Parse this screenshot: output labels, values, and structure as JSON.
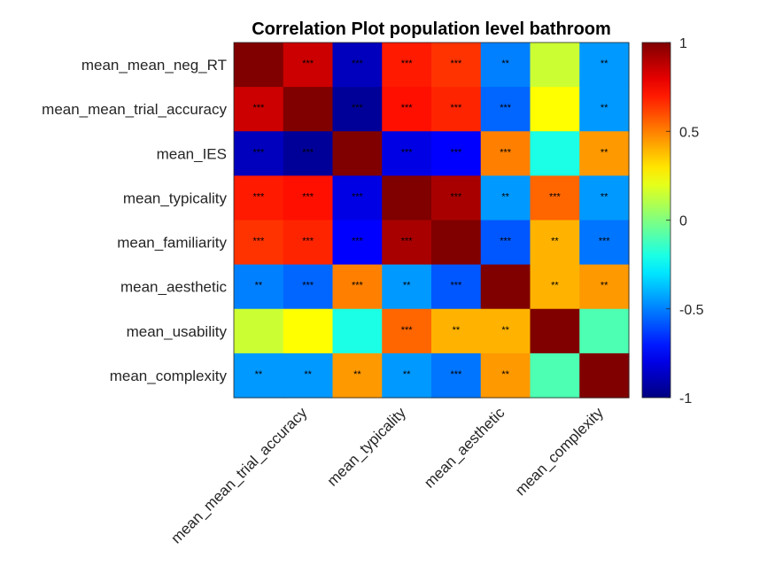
{
  "chart_data": {
    "type": "heatmap",
    "title": "Correlation Plot population level bathroom",
    "row_labels": [
      "mean_mean_neg_RT",
      "mean_mean_trial_accuracy",
      "mean_IES",
      "mean_typicality",
      "mean_familiarity",
      "mean_aesthetic",
      "mean_usability",
      "mean_complexity"
    ],
    "x_tick_labels": [
      "mean_mean_trial_accuracy",
      "mean_typicality",
      "mean_aesthetic",
      "mean_complexity"
    ],
    "x_tick_columns": [
      1,
      3,
      5,
      7
    ],
    "colormap": "jet",
    "clim": [
      -1,
      1
    ],
    "colorbar_ticks": [
      1,
      0.5,
      0,
      -0.5,
      -1
    ],
    "colorbar_tick_labels": [
      "1",
      "0.5",
      "0",
      "-0.5",
      "-1"
    ],
    "values": [
      [
        1.0,
        0.85,
        -0.88,
        0.7,
        0.65,
        -0.5,
        0.15,
        -0.45
      ],
      [
        0.85,
        1.0,
        -0.95,
        0.72,
        0.68,
        -0.55,
        0.25,
        -0.45
      ],
      [
        -0.88,
        -0.95,
        1.0,
        -0.8,
        -0.75,
        0.5,
        -0.2,
        0.45
      ],
      [
        0.7,
        0.72,
        -0.8,
        1.0,
        0.92,
        -0.45,
        0.55,
        -0.45
      ],
      [
        0.65,
        0.68,
        -0.75,
        0.92,
        1.0,
        -0.58,
        0.4,
        -0.52
      ],
      [
        -0.5,
        -0.55,
        0.5,
        -0.45,
        -0.58,
        1.0,
        0.4,
        0.45
      ],
      [
        0.15,
        0.25,
        -0.2,
        0.55,
        0.4,
        0.4,
        1.0,
        -0.1
      ],
      [
        -0.45,
        -0.45,
        0.45,
        -0.45,
        -0.52,
        0.45,
        -0.1,
        1.0
      ]
    ],
    "annotations": [
      [
        "",
        "***",
        "***",
        "***",
        "***",
        "**",
        "",
        "**"
      ],
      [
        "***",
        "",
        "***",
        "***",
        "***",
        "***",
        "",
        "**"
      ],
      [
        "***",
        "***",
        "",
        "***",
        "***",
        "***",
        "",
        "**"
      ],
      [
        "***",
        "***",
        "***",
        "",
        "***",
        "**",
        "***",
        "**"
      ],
      [
        "***",
        "***",
        "***",
        "***",
        "",
        "***",
        "**",
        "***"
      ],
      [
        "**",
        "***",
        "***",
        "**",
        "***",
        "",
        "**",
        "**"
      ],
      [
        "",
        "",
        "",
        "***",
        "**",
        "**",
        "",
        ""
      ],
      [
        "**",
        "**",
        "**",
        "**",
        "***",
        "**",
        "",
        ""
      ]
    ]
  }
}
